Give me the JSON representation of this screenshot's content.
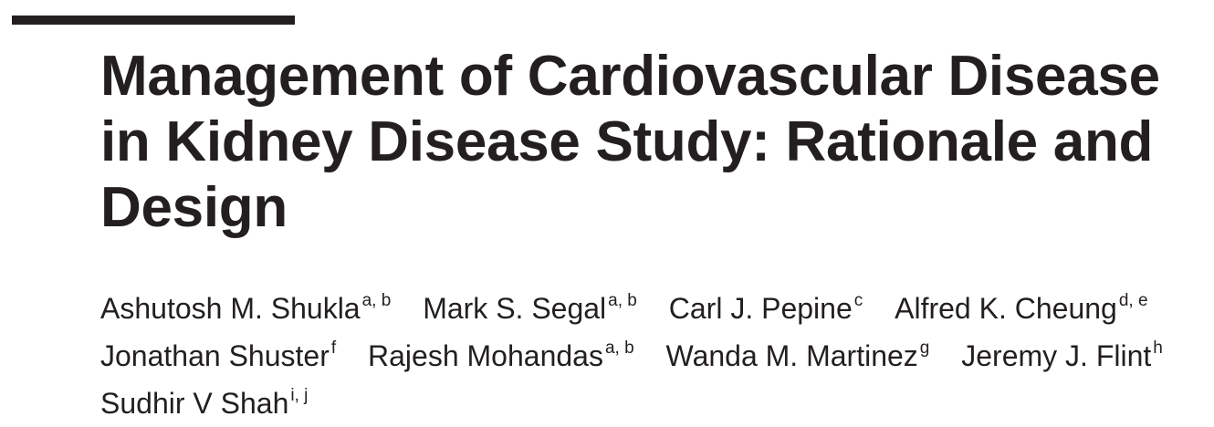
{
  "title_lines": [
    "Management of Cardiovascular Disease",
    "in Kidney Disease Study: Rationale and",
    "Design"
  ],
  "author_lines": [
    [
      {
        "name": "Ashutosh M. Shukla",
        "affil": "a, b"
      },
      {
        "name": "Mark S. Segal",
        "affil": "a, b"
      },
      {
        "name": "Carl J. Pepine",
        "affil": "c"
      },
      {
        "name": "Alfred K. Cheung",
        "affil": "d, e"
      }
    ],
    [
      {
        "name": "Jonathan Shuster",
        "affil": "f"
      },
      {
        "name": "Rajesh Mohandas",
        "affil": "a, b"
      },
      {
        "name": "Wanda M. Martinez",
        "affil": "g"
      },
      {
        "name": "Jeremy J. Flint",
        "affil": "h"
      }
    ],
    [
      {
        "name": "Sudhir V Shah",
        "affil": "i, j"
      }
    ]
  ],
  "colors": {
    "text": "#231f20",
    "rule": "#231f20",
    "background": "#ffffff"
  }
}
